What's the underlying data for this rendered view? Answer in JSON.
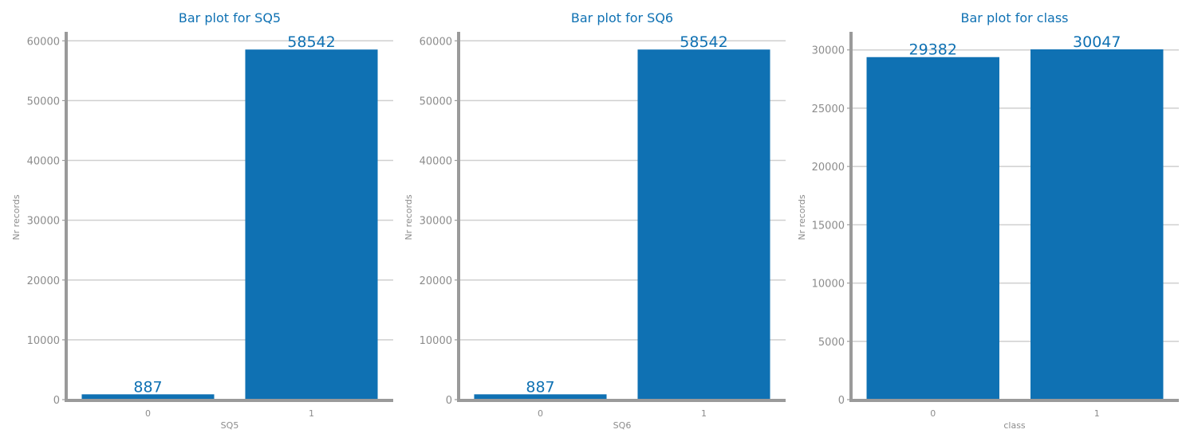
{
  "chart_data": [
    {
      "type": "bar",
      "title": "Bar plot for SQ5",
      "xlabel": "SQ5",
      "ylabel": "Nr records",
      "categories": [
        "0",
        "1"
      ],
      "values": [
        887,
        58542
      ],
      "data_labels": [
        "887",
        "58542"
      ],
      "ylim": [
        0,
        61500
      ],
      "yticks": [
        0,
        10000,
        20000,
        30000,
        40000,
        50000,
        60000
      ],
      "ytick_labels": [
        "0",
        "10000",
        "20000",
        "30000",
        "40000",
        "50000",
        "60000"
      ],
      "grid": "horizontal",
      "bar_color": "#0f71b3"
    },
    {
      "type": "bar",
      "title": "Bar plot for SQ6",
      "xlabel": "SQ6",
      "ylabel": "Nr records",
      "categories": [
        "0",
        "1"
      ],
      "values": [
        887,
        58542
      ],
      "data_labels": [
        "887",
        "58542"
      ],
      "ylim": [
        0,
        61500
      ],
      "yticks": [
        0,
        10000,
        20000,
        30000,
        40000,
        50000,
        60000
      ],
      "ytick_labels": [
        "0",
        "10000",
        "20000",
        "30000",
        "40000",
        "50000",
        "60000"
      ],
      "grid": "horizontal",
      "bar_color": "#0f71b3"
    },
    {
      "type": "bar",
      "title": "Bar plot for class",
      "xlabel": "class",
      "ylabel": "Nr records",
      "categories": [
        "0",
        "1"
      ],
      "values": [
        29382,
        30047
      ],
      "data_labels": [
        "29382",
        "30047"
      ],
      "ylim": [
        0,
        31550
      ],
      "yticks": [
        0,
        5000,
        10000,
        15000,
        20000,
        25000,
        30000
      ],
      "ytick_labels": [
        "0",
        "5000",
        "10000",
        "15000",
        "20000",
        "25000",
        "30000"
      ],
      "grid": "horizontal",
      "bar_color": "#0f71b3"
    }
  ]
}
